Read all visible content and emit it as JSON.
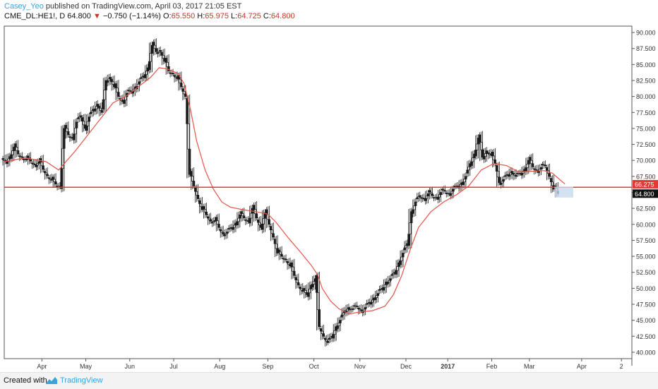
{
  "header": {
    "author": "Casey_Yeo",
    "published_text": "published on TradingView.com, April 03, 2017 21:05 EST",
    "symbol": "CME_DL:HE1!, D",
    "last": "64.800",
    "change": "−0.750 (−1.14%)",
    "open_label": "O:",
    "open": "65.550",
    "high_label": "H:",
    "high": "65.975",
    "low_label": "L:",
    "low": "64.725",
    "close_label": "C:",
    "close": "64.800"
  },
  "footer": {
    "created_with": "Created with",
    "brand": "TradingView"
  },
  "colors": {
    "line": "#e8534a",
    "level": "#e53935",
    "candle": "#1a1a1a",
    "last_price_bg": "#111111",
    "ma_price_bg": "#e53935",
    "box": "#c9d9ee"
  },
  "chart_data": {
    "type": "candlestick",
    "ylim": [
      39,
      91
    ],
    "y_ticks": [
      "40.000",
      "42.500",
      "45.000",
      "47.500",
      "50.000",
      "52.500",
      "55.000",
      "57.500",
      "60.000",
      "62.500",
      "65.000",
      "67.500",
      "70.000",
      "72.500",
      "75.000",
      "77.500",
      "80.000",
      "82.500",
      "85.000",
      "87.500",
      "90.000"
    ],
    "x_ticks": [
      "Apr",
      "May",
      "Jun",
      "Jul",
      "Aug",
      "Sep",
      "Oct",
      "Nov",
      "Dec",
      "2017",
      "Feb",
      "Mar",
      "Apr",
      "2"
    ],
    "x_tick_pos": [
      1.9,
      2.95,
      4.0,
      5.05,
      6.15,
      7.3,
      8.4,
      9.5,
      10.6,
      11.6,
      12.65,
      13.55,
      14.8,
      15.75
    ],
    "x_range": [
      1,
      16
    ],
    "horizontal_level": 65.8,
    "last_price_label": "64.800",
    "ma_price_label": "66.275",
    "series_close": [
      [
        1.0,
        69.8
      ],
      [
        1.1,
        70.6
      ],
      [
        1.2,
        72.1
      ],
      [
        1.3,
        71.0
      ],
      [
        1.4,
        70.5
      ],
      [
        1.5,
        70.2
      ],
      [
        1.6,
        69.9
      ],
      [
        1.7,
        69.3
      ],
      [
        1.8,
        69.8
      ],
      [
        1.9,
        68.6
      ],
      [
        2.0,
        67.6
      ],
      [
        2.1,
        66.9
      ],
      [
        2.2,
        66.3
      ],
      [
        2.3,
        65.9
      ],
      [
        2.4,
        75.0
      ],
      [
        2.5,
        74.0
      ],
      [
        2.6,
        73.5
      ],
      [
        2.7,
        76.0
      ],
      [
        2.8,
        77.0
      ],
      [
        2.9,
        75.0
      ],
      [
        3.0,
        76.8
      ],
      [
        3.1,
        78.0
      ],
      [
        3.2,
        78.8
      ],
      [
        3.3,
        77.5
      ],
      [
        3.4,
        82.5
      ],
      [
        3.5,
        83.0
      ],
      [
        3.6,
        81.5
      ],
      [
        3.7,
        80.0
      ],
      [
        3.8,
        79.2
      ],
      [
        3.9,
        80.5
      ],
      [
        4.0,
        80.8
      ],
      [
        4.1,
        81.5
      ],
      [
        4.2,
        82.3
      ],
      [
        4.3,
        83.2
      ],
      [
        4.4,
        84.5
      ],
      [
        4.5,
        88.0
      ],
      [
        4.6,
        87.0
      ],
      [
        4.7,
        87.2
      ],
      [
        4.8,
        85.5
      ],
      [
        4.9,
        84.0
      ],
      [
        5.0,
        83.6
      ],
      [
        5.1,
        82.8
      ],
      [
        5.2,
        81.5
      ],
      [
        5.3,
        80.0
      ],
      [
        5.4,
        67.8
      ],
      [
        5.5,
        66.0
      ],
      [
        5.6,
        64.0
      ],
      [
        5.7,
        62.3
      ],
      [
        5.8,
        61.5
      ],
      [
        5.9,
        60.5
      ],
      [
        6.0,
        60.6
      ],
      [
        6.1,
        59.5
      ],
      [
        6.2,
        58.5
      ],
      [
        6.3,
        58.8
      ],
      [
        6.4,
        59.5
      ],
      [
        6.5,
        60.2
      ],
      [
        6.6,
        61.5
      ],
      [
        6.7,
        61.0
      ],
      [
        6.8,
        60.5
      ],
      [
        6.9,
        62.5
      ],
      [
        7.0,
        61.0
      ],
      [
        7.1,
        59.5
      ],
      [
        7.2,
        61.8
      ],
      [
        7.3,
        60.0
      ],
      [
        7.4,
        58.0
      ],
      [
        7.5,
        55.5
      ],
      [
        7.6,
        55.0
      ],
      [
        7.7,
        54.5
      ],
      [
        7.8,
        53.5
      ],
      [
        7.9,
        52.0
      ],
      [
        8.0,
        50.5
      ],
      [
        8.1,
        49.5
      ],
      [
        8.2,
        49.0
      ],
      [
        8.3,
        50.5
      ],
      [
        8.4,
        51.5
      ],
      [
        8.5,
        44.0
      ],
      [
        8.6,
        42.5
      ],
      [
        8.7,
        41.5
      ],
      [
        8.8,
        42.5
      ],
      [
        8.9,
        44.0
      ],
      [
        9.0,
        45.0
      ],
      [
        9.1,
        46.5
      ],
      [
        9.2,
        47.0
      ],
      [
        9.3,
        46.8
      ],
      [
        9.4,
        47.2
      ],
      [
        9.5,
        46.5
      ],
      [
        9.6,
        47.0
      ],
      [
        9.7,
        47.8
      ],
      [
        9.8,
        48.5
      ],
      [
        9.9,
        49.2
      ],
      [
        10.0,
        50.0
      ],
      [
        10.1,
        51.0
      ],
      [
        10.2,
        51.5
      ],
      [
        10.3,
        52.5
      ],
      [
        10.4,
        54.0
      ],
      [
        10.5,
        55.5
      ],
      [
        10.6,
        57.0
      ],
      [
        10.7,
        62.0
      ],
      [
        10.8,
        63.5
      ],
      [
        10.9,
        64.5
      ],
      [
        11.0,
        64.0
      ],
      [
        11.1,
        64.8
      ],
      [
        11.2,
        64.5
      ],
      [
        11.3,
        64.2
      ],
      [
        11.4,
        65.0
      ],
      [
        11.5,
        65.2
      ],
      [
        11.6,
        64.8
      ],
      [
        11.7,
        65.5
      ],
      [
        11.8,
        66.0
      ],
      [
        11.9,
        66.5
      ],
      [
        12.0,
        67.5
      ],
      [
        12.1,
        69.5
      ],
      [
        12.2,
        71.0
      ],
      [
        12.3,
        73.5
      ],
      [
        12.4,
        70.5
      ],
      [
        12.5,
        71.5
      ],
      [
        12.6,
        70.8
      ],
      [
        12.7,
        69.5
      ],
      [
        12.8,
        66.5
      ],
      [
        12.9,
        67.0
      ],
      [
        13.0,
        67.8
      ],
      [
        13.1,
        68.3
      ],
      [
        13.2,
        67.5
      ],
      [
        13.3,
        68.0
      ],
      [
        13.4,
        68.6
      ],
      [
        13.5,
        70.0
      ],
      [
        13.6,
        69.0
      ],
      [
        13.7,
        68.4
      ],
      [
        13.8,
        68.9
      ],
      [
        13.9,
        69.2
      ],
      [
        14.0,
        67.5
      ],
      [
        14.1,
        65.5
      ],
      [
        14.2,
        64.8
      ]
    ],
    "series_ma": [
      [
        1.0,
        69.8
      ],
      [
        1.5,
        70.4
      ],
      [
        2.0,
        69.8
      ],
      [
        2.3,
        68.5
      ],
      [
        2.7,
        71.5
      ],
      [
        3.0,
        74.0
      ],
      [
        3.3,
        76.5
      ],
      [
        3.6,
        79.0
      ],
      [
        3.9,
        80.0
      ],
      [
        4.2,
        81.5
      ],
      [
        4.5,
        83.0
      ],
      [
        4.7,
        84.5
      ],
      [
        4.9,
        84.3
      ],
      [
        5.15,
        83.6
      ],
      [
        5.3,
        82.0
      ],
      [
        5.45,
        78.0
      ],
      [
        5.6,
        73.0
      ],
      [
        5.8,
        68.5
      ],
      [
        6.0,
        65.5
      ],
      [
        6.2,
        63.5
      ],
      [
        6.4,
        62.7
      ],
      [
        6.7,
        62.3
      ],
      [
        7.0,
        62.0
      ],
      [
        7.3,
        61.6
      ],
      [
        7.5,
        60.3
      ],
      [
        7.8,
        57.8
      ],
      [
        8.1,
        55.5
      ],
      [
        8.35,
        53.5
      ],
      [
        8.5,
        52.0
      ],
      [
        8.6,
        50.0
      ],
      [
        8.8,
        48.0
      ],
      [
        9.0,
        46.8
      ],
      [
        9.25,
        46.0
      ],
      [
        9.5,
        46.3
      ],
      [
        9.8,
        46.5
      ],
      [
        10.1,
        47.2
      ],
      [
        10.3,
        49.0
      ],
      [
        10.5,
        52.0
      ],
      [
        10.7,
        56.0
      ],
      [
        10.9,
        59.5
      ],
      [
        11.2,
        62.0
      ],
      [
        11.5,
        63.5
      ],
      [
        11.8,
        64.6
      ],
      [
        12.1,
        66.0
      ],
      [
        12.4,
        68.5
      ],
      [
        12.7,
        69.5
      ],
      [
        13.0,
        69.2
      ],
      [
        13.3,
        68.2
      ],
      [
        13.6,
        68.3
      ],
      [
        13.9,
        68.4
      ],
      [
        14.1,
        68.0
      ],
      [
        14.4,
        66.3
      ]
    ]
  }
}
